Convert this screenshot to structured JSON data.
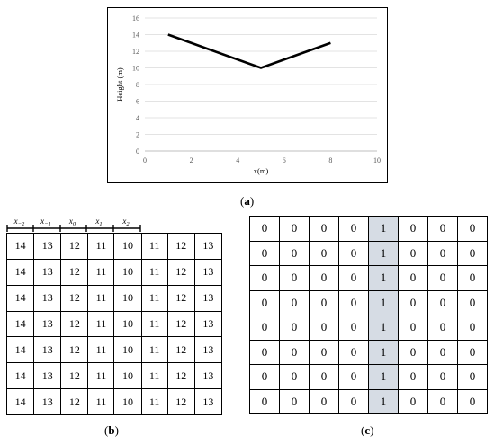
{
  "chart_data": {
    "type": "line",
    "title": "",
    "xlabel": "x(m)",
    "ylabel": "Height (m)",
    "xlim": [
      0,
      10
    ],
    "ylim": [
      0,
      16
    ],
    "x_ticks": [
      "0",
      "2",
      "4",
      "6",
      "8",
      "10"
    ],
    "y_ticks": [
      "0",
      "2",
      "4",
      "6",
      "8",
      "10",
      "12",
      "14",
      "16"
    ],
    "grid": "horizontal",
    "series": [
      {
        "x": [
          1,
          5,
          8
        ],
        "values": [
          14,
          10,
          13
        ],
        "color": "#000000"
      }
    ]
  },
  "labels": {
    "a": {
      "text": "a"
    },
    "b": {
      "text": "b"
    },
    "c": {
      "text": "c"
    }
  },
  "ruler": [
    {
      "base": "x",
      "sub": "−2"
    },
    {
      "base": "x",
      "sub": "−1"
    },
    {
      "base": "x",
      "sub": "0"
    },
    {
      "base": "x",
      "sub": "1"
    },
    {
      "base": "x",
      "sub": "2"
    }
  ],
  "grid_b": [
    [
      "14",
      "13",
      "12",
      "11",
      "10",
      "11",
      "12",
      "13"
    ],
    [
      "14",
      "13",
      "12",
      "11",
      "10",
      "11",
      "12",
      "13"
    ],
    [
      "14",
      "13",
      "12",
      "11",
      "10",
      "11",
      "12",
      "13"
    ],
    [
      "14",
      "13",
      "12",
      "11",
      "10",
      "11",
      "12",
      "13"
    ],
    [
      "14",
      "13",
      "12",
      "11",
      "10",
      "11",
      "12",
      "13"
    ],
    [
      "14",
      "13",
      "12",
      "11",
      "10",
      "11",
      "12",
      "13"
    ],
    [
      "14",
      "13",
      "12",
      "11",
      "10",
      "11",
      "12",
      "13"
    ]
  ],
  "grid_c": [
    [
      "0",
      "0",
      "0",
      "0",
      "1",
      "0",
      "0",
      "0"
    ],
    [
      "0",
      "0",
      "0",
      "0",
      "1",
      "0",
      "0",
      "0"
    ],
    [
      "0",
      "0",
      "0",
      "0",
      "1",
      "0",
      "0",
      "0"
    ],
    [
      "0",
      "0",
      "0",
      "0",
      "1",
      "0",
      "0",
      "0"
    ],
    [
      "0",
      "0",
      "0",
      "0",
      "1",
      "0",
      "0",
      "0"
    ],
    [
      "0",
      "0",
      "0",
      "0",
      "1",
      "0",
      "0",
      "0"
    ],
    [
      "0",
      "0",
      "0",
      "0",
      "1",
      "0",
      "0",
      "0"
    ],
    [
      "0",
      "0",
      "0",
      "0",
      "1",
      "0",
      "0",
      "0"
    ]
  ],
  "grid_c_highlight_col": 4,
  "highlight_color": "#d6dce4"
}
